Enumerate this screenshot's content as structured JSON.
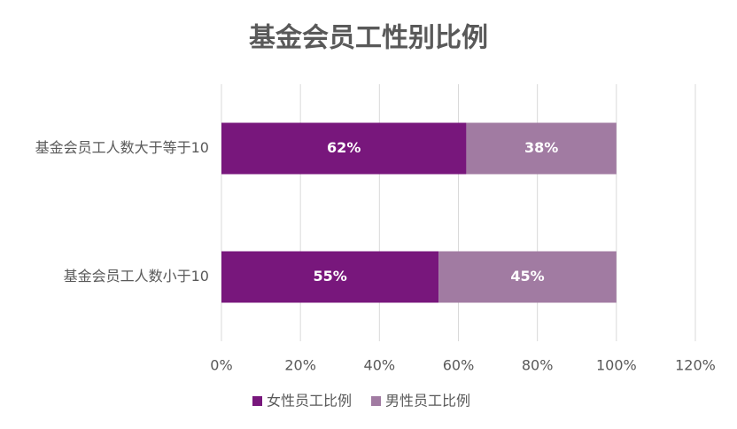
{
  "chart_data": {
    "type": "bar",
    "orientation": "horizontal",
    "stacked": true,
    "title": "基金会员工性别比例",
    "categories": [
      "基金会员工人数大于等于10",
      "基金会员工人数小于10"
    ],
    "series": [
      {
        "name": "女性员工比例",
        "color": "#78177c",
        "values": [
          62,
          55
        ],
        "value_labels": [
          "62%",
          "55%"
        ]
      },
      {
        "name": "男性员工比例",
        "color": "#a17ba2",
        "values": [
          38,
          45
        ],
        "value_labels": [
          "38%",
          "45%"
        ]
      }
    ],
    "xlim": [
      0,
      120
    ],
    "xticks": [
      {
        "value": 0,
        "label": "0%"
      },
      {
        "value": 20,
        "label": "20%"
      },
      {
        "value": 40,
        "label": "40%"
      },
      {
        "value": 60,
        "label": "60%"
      },
      {
        "value": 80,
        "label": "80%"
      },
      {
        "value": 100,
        "label": "100%"
      },
      {
        "value": 120,
        "label": "120%"
      }
    ],
    "grid": true,
    "legend": "bottom"
  }
}
